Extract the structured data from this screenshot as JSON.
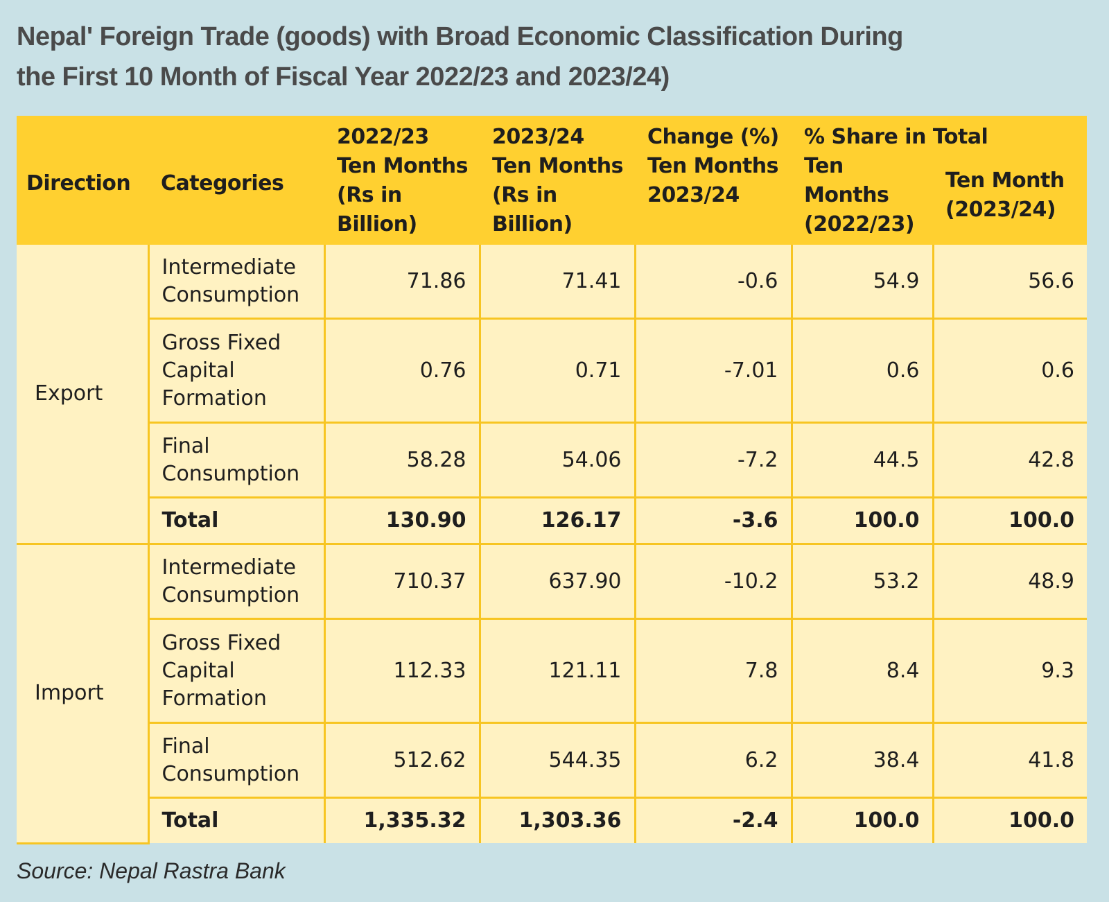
{
  "title_lines": [
    "Nepal' Foreign Trade (goods) with Broad Economic Classification During",
    "the First 10 Month of Fiscal Year 2022/23 and 2023/24)"
  ],
  "header": {
    "direction": "Direction",
    "categories": "Categories",
    "col_2022_year": "2022/23",
    "col_2022_desc": "Ten Months (Rs in Billion)",
    "col_2023_year": "2023/24",
    "col_2023_desc": "Ten Months (Rs in Billion)",
    "change_title": "Change (%)",
    "change_desc": "Ten Months 2023/24",
    "share_title": "% Share in Total",
    "share_2022_desc": "Ten Months (2022/23)",
    "share_2023_desc": "Ten Month (2023/24)"
  },
  "sections": [
    {
      "direction": "Export",
      "rows": [
        {
          "category": "Intermediate Consumption",
          "v2022": "71.86",
          "v2023": "71.41",
          "change": "-0.6",
          "share2022": "54.9",
          "share2023": "56.6"
        },
        {
          "category": "Gross Fixed Capital Formation",
          "v2022": "0.76",
          "v2023": "0.71",
          "change": "-7.01",
          "share2022": "0.6",
          "share2023": "0.6"
        },
        {
          "category": "Final Consumption",
          "v2022": "58.28",
          "v2023": "54.06",
          "change": "-7.2",
          "share2022": "44.5",
          "share2023": "42.8"
        },
        {
          "category": "Total",
          "v2022": "130.90",
          "v2023": "126.17",
          "change": "-3.6",
          "share2022": "100.0",
          "share2023": "100.0"
        }
      ]
    },
    {
      "direction": "Import",
      "rows": [
        {
          "category": "Intermediate Consumption",
          "v2022": "710.37",
          "v2023": "637.90",
          "change": "-10.2",
          "share2022": "53.2",
          "share2023": "48.9"
        },
        {
          "category": "Gross Fixed Capital Formation",
          "v2022": "112.33",
          "v2023": "121.11",
          "change": "7.8",
          "share2022": "8.4",
          "share2023": "9.3"
        },
        {
          "category": "Final Consumption",
          "v2022": "512.62",
          "v2023": "544.35",
          "change": "6.2",
          "share2022": "38.4",
          "share2023": "41.8"
        },
        {
          "category": "Total",
          "v2022": "1,335.32",
          "v2023": "1,303.36",
          "change": "-2.4",
          "share2022": "100.0",
          "share2023": "100.0"
        }
      ]
    }
  ],
  "source": "Source: Nepal Rastra Bank",
  "colors": {
    "background": "#c9e1e6",
    "header_fill": "#ffd030",
    "cell_fill": "#fff2c2",
    "grid_line": "#f7c522"
  }
}
